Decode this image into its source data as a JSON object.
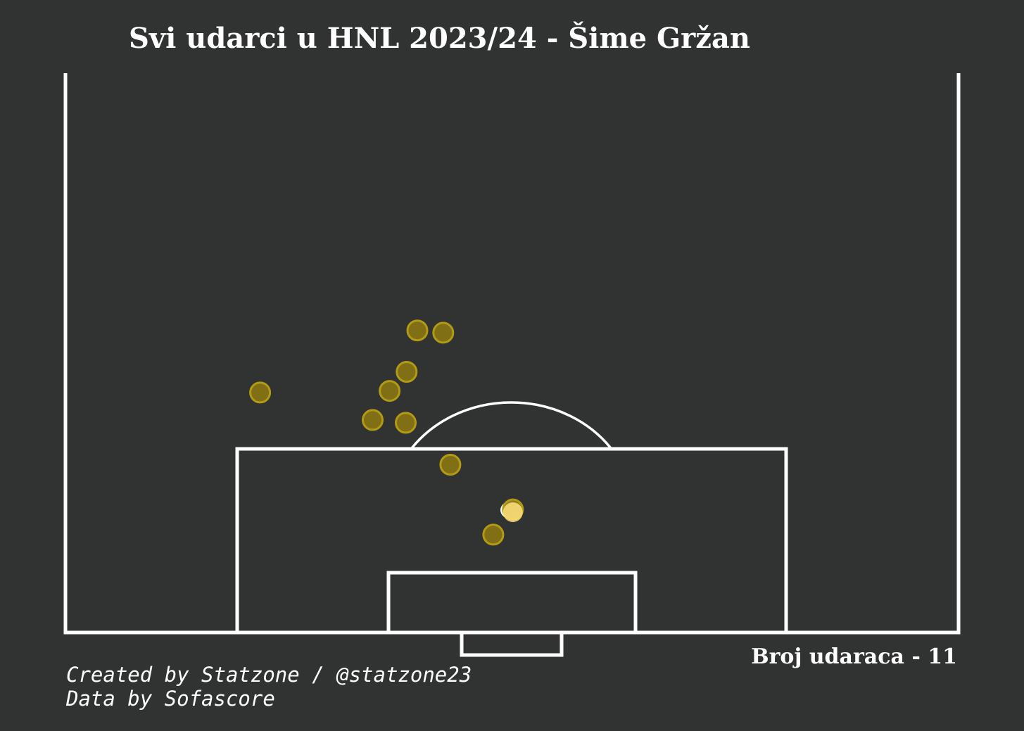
{
  "title": "Svi udarci u HNL 2023/24 - Šime Gržan",
  "shot_count_text": "Broj udaraca - 11",
  "credits": {
    "line1": "Created by Statzone / @statzone23",
    "line2": "Data by Sofascore"
  },
  "colors": {
    "background": "#313332",
    "lines": "#ffffff",
    "shot_fill": "#8a7512",
    "shot_stroke": "#b39a14",
    "highlight_fill": "#ffe27a"
  },
  "chart_data": {
    "type": "scatter",
    "title": "Svi udarci u HNL 2023/24 - Šime Gržan",
    "xlabel": "",
    "ylabel": "",
    "pitch": "vertical half pitch, goal at bottom",
    "x_axis": "pitch width (0-100)",
    "y_axis": "distance from goal line (0-100 = halfway line)",
    "xlim": [
      0,
      100
    ],
    "ylim": [
      0,
      100
    ],
    "points": [
      {
        "x": 21.8,
        "y": 42.9
      },
      {
        "x": 38.1,
        "y": 37.5
      },
      {
        "x": 34.4,
        "y": 38.0
      },
      {
        "x": 36.3,
        "y": 43.2
      },
      {
        "x": 38.2,
        "y": 46.6
      },
      {
        "x": 42.3,
        "y": 53.6
      },
      {
        "x": 39.4,
        "y": 54.0
      },
      {
        "x": 43.1,
        "y": 30.0
      },
      {
        "x": 50.1,
        "y": 22.0
      },
      {
        "x": 50.1,
        "y": 21.5,
        "highlight": true
      },
      {
        "x": 47.9,
        "y": 17.5
      }
    ]
  }
}
